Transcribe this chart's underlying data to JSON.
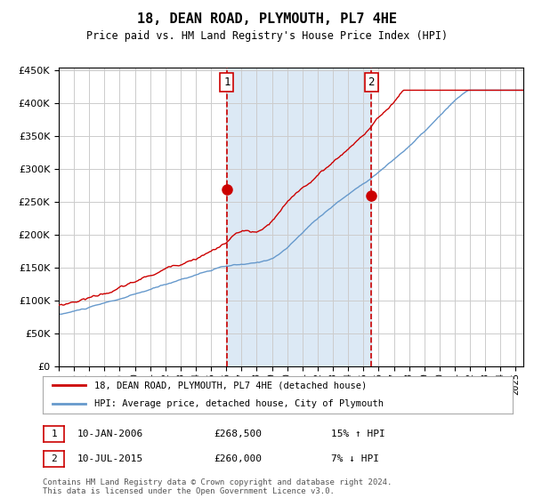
{
  "title": "18, DEAN ROAD, PLYMOUTH, PL7 4HE",
  "subtitle": "Price paid vs. HM Land Registry's House Price Index (HPI)",
  "background_color": "#ffffff",
  "plot_bg_color": "#ffffff",
  "shaded_region_color": "#dce9f5",
  "grid_color": "#cccccc",
  "line1_color": "#cc0000",
  "line2_color": "#6699cc",
  "vline_color": "#cc0000",
  "sale1_date_num": 2006.03,
  "sale1_price": 268500,
  "sale2_date_num": 2015.53,
  "sale2_price": 260000,
  "legend_line1": "18, DEAN ROAD, PLYMOUTH, PL7 4HE (detached house)",
  "legend_line2": "HPI: Average price, detached house, City of Plymouth",
  "table_row1": [
    "1",
    "10-JAN-2006",
    "£268,500",
    "15% ↑ HPI"
  ],
  "table_row2": [
    "2",
    "10-JUL-2015",
    "£260,000",
    "7% ↓ HPI"
  ],
  "footer": "Contains HM Land Registry data © Crown copyright and database right 2024.\nThis data is licensed under the Open Government Licence v3.0.",
  "xmin": 1995.0,
  "xmax": 2025.5
}
